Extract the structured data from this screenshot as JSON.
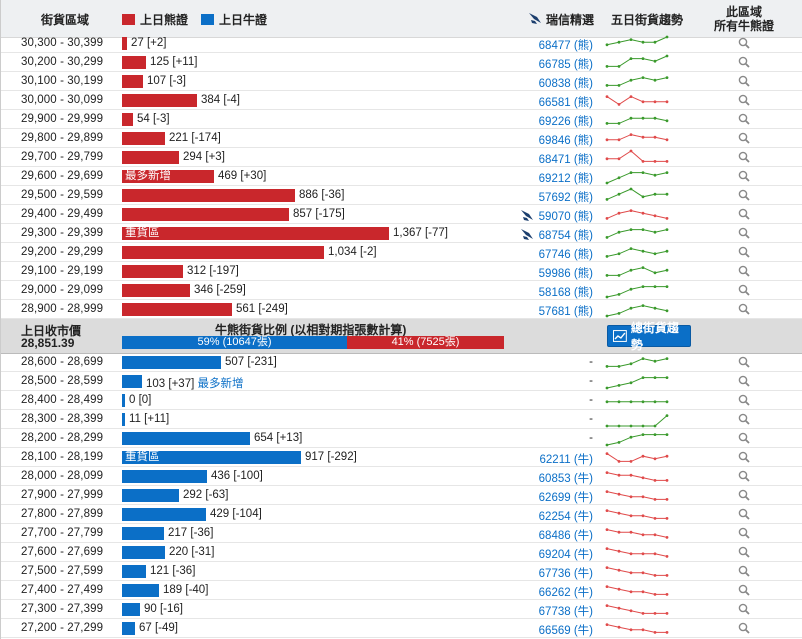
{
  "header": {
    "range_col": "街貨區域",
    "legend_bear": "上日熊證",
    "legend_bull": "上日牛證",
    "ubs_col": "瑞信精選",
    "trend_col": "五日街貨趨勢",
    "all_col_line1": "此區域",
    "all_col_line2": "所有牛熊證"
  },
  "colors": {
    "bear": "#c9272c",
    "bull": "#0b6fc7",
    "spark_up": "#3a9a2c",
    "spark_down": "#e04a4a"
  },
  "bear_rows": [
    {
      "range": "30,300 - 30,399",
      "qty": 27,
      "label": "27 [+2]",
      "inner": "",
      "tag": "",
      "ubs": "68477 (熊)",
      "flag": false,
      "trend": [
        3,
        4,
        5,
        4,
        4,
        6
      ],
      "dir": "up"
    },
    {
      "range": "30,200 - 30,299",
      "qty": 125,
      "label": "125 [+11]",
      "inner": "",
      "tag": "",
      "ubs": "66785 (熊)",
      "flag": false,
      "trend": [
        2,
        2,
        5,
        5,
        4,
        6
      ],
      "dir": "up"
    },
    {
      "range": "30,100 - 30,199",
      "qty": 107,
      "label": "107 [-3]",
      "inner": "",
      "tag": "",
      "ubs": "60838 (熊)",
      "flag": false,
      "trend": [
        2,
        2,
        4,
        5,
        4,
        5
      ],
      "dir": "up"
    },
    {
      "range": "30,000 - 30,099",
      "qty": 384,
      "label": "384 [-4]",
      "inner": "",
      "tag": "",
      "ubs": "66581 (熊)",
      "flag": false,
      "trend": [
        5,
        2,
        5,
        3,
        3,
        3
      ],
      "dir": "down"
    },
    {
      "range": "29,900 - 29,999",
      "qty": 54,
      "label": "54 [-3]",
      "inner": "",
      "tag": "",
      "ubs": "69226 (熊)",
      "flag": false,
      "trend": [
        2,
        2,
        4,
        4,
        4,
        3
      ],
      "dir": "up"
    },
    {
      "range": "29,800 - 29,899",
      "qty": 221,
      "label": "221 [-174]",
      "inner": "",
      "tag": "",
      "ubs": "69846 (熊)",
      "flag": false,
      "trend": [
        3,
        3,
        5,
        4,
        4,
        3
      ],
      "dir": "down"
    },
    {
      "range": "29,700 - 29,799",
      "qty": 294,
      "label": "294 [+3]",
      "inner": "",
      "tag": "",
      "ubs": "68471 (熊)",
      "flag": false,
      "trend": [
        3,
        3,
        6,
        2,
        2,
        2
      ],
      "dir": "down"
    },
    {
      "range": "29,600 - 29,699",
      "qty": 469,
      "label": "469 [+30]",
      "inner": "最多新增",
      "tag": "",
      "ubs": "69212 (熊)",
      "flag": false,
      "trend": [
        1,
        3,
        5,
        5,
        4,
        5
      ],
      "dir": "up"
    },
    {
      "range": "29,500 - 29,599",
      "qty": 886,
      "label": "886 [-36]",
      "inner": "",
      "tag": "",
      "ubs": "57692 (熊)",
      "flag": false,
      "trend": [
        2,
        4,
        6,
        3,
        4,
        4
      ],
      "dir": "up"
    },
    {
      "range": "29,400 - 29,499",
      "qty": 857,
      "label": "857 [-175]",
      "inner": "",
      "tag": "",
      "ubs": "59070 (熊)",
      "flag": true,
      "trend": [
        2,
        4,
        5,
        4,
        3,
        2
      ],
      "dir": "down"
    },
    {
      "range": "29,300 - 29,399",
      "qty": 1367,
      "label": "1,367 [-77]",
      "inner": "重貨區",
      "tag": "",
      "ubs": "68754 (熊)",
      "flag": true,
      "trend": [
        2,
        4,
        5,
        5,
        4,
        5
      ],
      "dir": "up"
    },
    {
      "range": "29,200 - 29,299",
      "qty": 1034,
      "label": "1,034 [-2]",
      "inner": "",
      "tag": "",
      "ubs": "67746 (熊)",
      "flag": false,
      "trend": [
        2,
        3,
        5,
        4,
        3,
        4
      ],
      "dir": "up"
    },
    {
      "range": "29,100 - 29,199",
      "qty": 312,
      "label": "312 [-197]",
      "inner": "",
      "tag": "",
      "ubs": "59986 (熊)",
      "flag": false,
      "trend": [
        2,
        2,
        4,
        5,
        3,
        4
      ],
      "dir": "up"
    },
    {
      "range": "29,000 - 29,099",
      "qty": 346,
      "label": "346 [-259]",
      "inner": "",
      "tag": "",
      "ubs": "58168 (熊)",
      "flag": false,
      "trend": [
        1,
        2,
        4,
        5,
        5,
        5
      ],
      "dir": "up"
    },
    {
      "range": "28,900 - 28,999",
      "qty": 561,
      "label": "561 [-249]",
      "inner": "",
      "tag": "",
      "ubs": "57681 (熊)",
      "flag": false,
      "trend": [
        1,
        2,
        4,
        5,
        4,
        3
      ],
      "dir": "up"
    }
  ],
  "middle": {
    "prev_close_label": "上日收市價",
    "prev_close": "28,851.39",
    "ratio_title": "牛熊街貨比例 (以相對期指張數計算)",
    "bull_pct": 59,
    "bull_text": "59% (10647張)",
    "bear_text": "41% (7525張)",
    "trend_button": "總街貨趨勢"
  },
  "bull_rows": [
    {
      "range": "28,600 - 28,699",
      "qty": 507,
      "label": "507 [-231]",
      "inner": "",
      "tag": "",
      "ubs": "-",
      "flag": false,
      "trend": [
        2,
        2,
        3,
        5,
        4,
        5
      ],
      "dir": "up"
    },
    {
      "range": "28,500 - 28,599",
      "qty": 103,
      "label": "103 [+37]",
      "inner": "",
      "tag": "最多新增",
      "ubs": "-",
      "flag": false,
      "trend": [
        1,
        2,
        3,
        5,
        5,
        5
      ],
      "dir": "up"
    },
    {
      "range": "28,400 - 28,499",
      "qty": 0,
      "label": "0 [0]",
      "inner": "",
      "tag": "",
      "ubs": "-",
      "flag": false,
      "trend": [
        3,
        3,
        3,
        3,
        3,
        3
      ],
      "dir": "up"
    },
    {
      "range": "28,300 - 28,399",
      "qty": 11,
      "label": "11 [+11]",
      "inner": "",
      "tag": "",
      "ubs": "-",
      "flag": false,
      "trend": [
        1,
        1,
        1,
        1,
        1,
        5
      ],
      "dir": "up"
    },
    {
      "range": "28,200 - 28,299",
      "qty": 654,
      "label": "654 [+13]",
      "inner": "",
      "tag": "",
      "ubs": "-",
      "flag": false,
      "trend": [
        1,
        2,
        4,
        5,
        5,
        5
      ],
      "dir": "up"
    },
    {
      "range": "28,100 - 28,199",
      "qty": 917,
      "label": "917 [-292]",
      "inner": "重貨區",
      "tag": "",
      "ubs": "62211 (牛)",
      "flag": false,
      "trend": [
        5,
        2,
        2,
        4,
        3,
        4
      ],
      "dir": "down"
    },
    {
      "range": "28,000 - 28,099",
      "qty": 436,
      "label": "436 [-100]",
      "inner": "",
      "tag": "",
      "ubs": "60853 (牛)",
      "flag": false,
      "trend": [
        5,
        4,
        4,
        3,
        2,
        2
      ],
      "dir": "down"
    },
    {
      "range": "27,900 - 27,999",
      "qty": 292,
      "label": "292 [-63]",
      "inner": "",
      "tag": "",
      "ubs": "62699 (牛)",
      "flag": false,
      "trend": [
        5,
        4,
        3,
        3,
        2,
        2
      ],
      "dir": "down"
    },
    {
      "range": "27,800 - 27,899",
      "qty": 429,
      "label": "429 [-104]",
      "inner": "",
      "tag": "",
      "ubs": "62254 (牛)",
      "flag": false,
      "trend": [
        5,
        4,
        3,
        3,
        2,
        2
      ],
      "dir": "down"
    },
    {
      "range": "27,700 - 27,799",
      "qty": 217,
      "label": "217 [-36]",
      "inner": "",
      "tag": "",
      "ubs": "68486 (牛)",
      "flag": false,
      "trend": [
        5,
        4,
        4,
        3,
        3,
        2
      ],
      "dir": "down"
    },
    {
      "range": "27,600 - 27,699",
      "qty": 220,
      "label": "220 [-31]",
      "inner": "",
      "tag": "",
      "ubs": "69204 (牛)",
      "flag": false,
      "trend": [
        5,
        4,
        3,
        3,
        3,
        2
      ],
      "dir": "down"
    },
    {
      "range": "27,500 - 27,599",
      "qty": 121,
      "label": "121 [-36]",
      "inner": "",
      "tag": "",
      "ubs": "67736 (牛)",
      "flag": false,
      "trend": [
        5,
        4,
        3,
        3,
        2,
        2
      ],
      "dir": "down"
    },
    {
      "range": "27,400 - 27,499",
      "qty": 189,
      "label": "189 [-40]",
      "inner": "",
      "tag": "",
      "ubs": "66262 (牛)",
      "flag": false,
      "trend": [
        5,
        4,
        3,
        3,
        2,
        2
      ],
      "dir": "down"
    },
    {
      "range": "27,300 - 27,399",
      "qty": 90,
      "label": "90 [-16]",
      "inner": "",
      "tag": "",
      "ubs": "67738 (牛)",
      "flag": false,
      "trend": [
        5,
        4,
        3,
        2,
        2,
        2
      ],
      "dir": "down"
    },
    {
      "range": "27,200 - 27,299",
      "qty": 67,
      "label": "67 [-49]",
      "inner": "",
      "tag": "",
      "ubs": "66569 (牛)",
      "flag": false,
      "trend": [
        5,
        4,
        3,
        3,
        2,
        2
      ],
      "dir": "down"
    }
  ]
}
